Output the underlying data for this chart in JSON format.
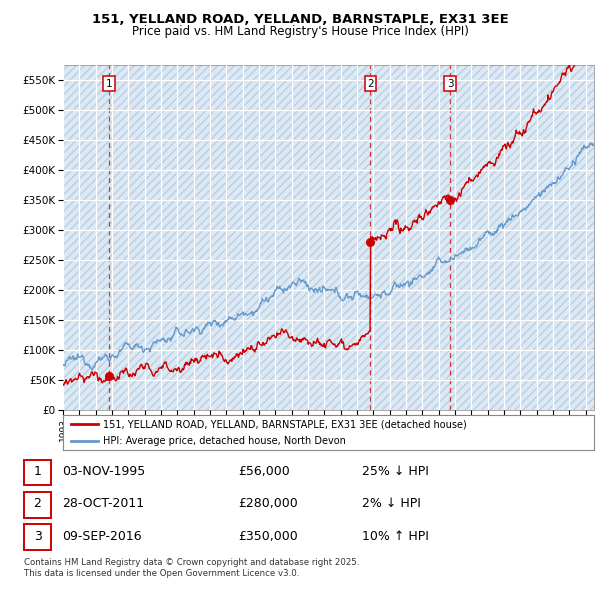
{
  "title": "151, YELLAND ROAD, YELLAND, BARNSTAPLE, EX31 3EE",
  "subtitle": "Price paid vs. HM Land Registry's House Price Index (HPI)",
  "ylim": [
    0,
    575000
  ],
  "yticks": [
    0,
    50000,
    100000,
    150000,
    200000,
    250000,
    300000,
    350000,
    400000,
    450000,
    500000,
    550000
  ],
  "ytick_labels": [
    "£0",
    "£50K",
    "£100K",
    "£150K",
    "£200K",
    "£250K",
    "£300K",
    "£350K",
    "£400K",
    "£450K",
    "£500K",
    "£550K"
  ],
  "xlim_start": 1993.0,
  "xlim_end": 2025.5,
  "plot_bg_color": "#dce9f5",
  "hatch_color": "#b8cfe0",
  "grid_color": "#ffffff",
  "sale_color": "#cc0000",
  "hpi_color": "#6699cc",
  "legend_label_sale": "151, YELLAND ROAD, YELLAND, BARNSTAPLE, EX31 3EE (detached house)",
  "legend_label_hpi": "HPI: Average price, detached house, North Devon",
  "transactions": [
    {
      "num": 1,
      "date_x": 1995.84,
      "price": 56000
    },
    {
      "num": 2,
      "date_x": 2011.82,
      "price": 280000
    },
    {
      "num": 3,
      "date_x": 2016.69,
      "price": 350000
    }
  ],
  "footer": "Contains HM Land Registry data © Crown copyright and database right 2025.\nThis data is licensed under the Open Government Licence v3.0.",
  "table_rows": [
    {
      "num": 1,
      "date": "03-NOV-1995",
      "price": "£56,000",
      "label": "25% ↓ HPI"
    },
    {
      "num": 2,
      "date": "28-OCT-2011",
      "price": "£280,000",
      "label": "2% ↓ HPI"
    },
    {
      "num": 3,
      "date": "09-SEP-2016",
      "price": "£350,000",
      "label": "10% ↑ HPI"
    }
  ]
}
